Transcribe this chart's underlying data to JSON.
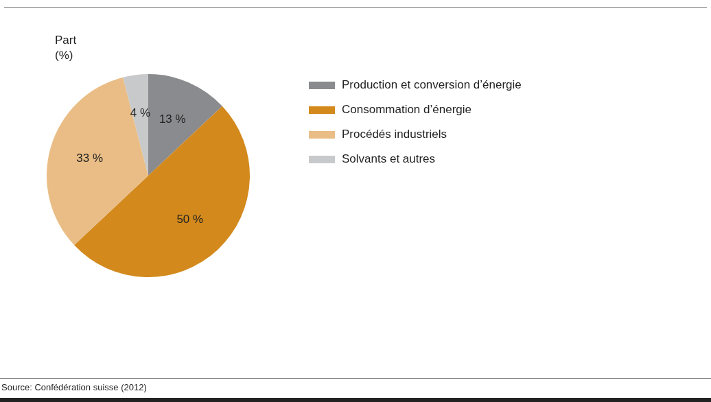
{
  "chart_data": {
    "type": "pie",
    "title": "Part (%)",
    "categories": [
      "Production et conversion d’énergie",
      "Consommation d’énergie",
      "Procédés industriels",
      "Solvants et autres"
    ],
    "values": [
      13,
      50,
      33,
      4
    ],
    "colors": [
      "#8a8b8e",
      "#d3891c",
      "#e9bd85",
      "#c8c9cb"
    ],
    "value_labels": [
      "13 %",
      "50 %",
      "33 %",
      "4 %"
    ],
    "legend": "right",
    "annotations": [
      "Source: Confédération suisse (2012)"
    ]
  }
}
